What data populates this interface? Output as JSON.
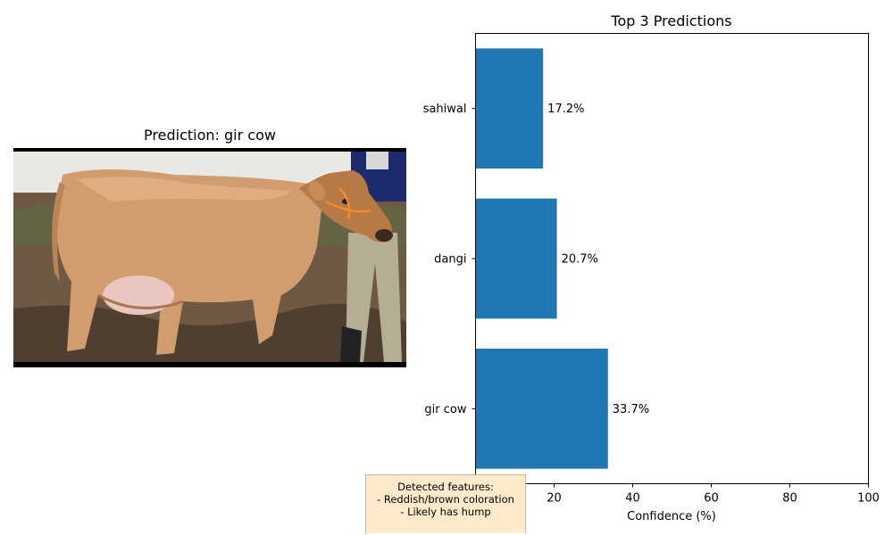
{
  "left_panel": {
    "title": "Prediction: gir cow",
    "photo_icon": "brown-cow-photo"
  },
  "features": {
    "lines": [
      "Detected features:",
      "- Reddish/brown coloration",
      "- Likely has hump"
    ]
  },
  "chart_data": {
    "type": "bar",
    "orientation": "horizontal",
    "title": "Top 3 Predictions",
    "xlabel": "Confidence (%)",
    "ylabel": "",
    "xlim": [
      0,
      100
    ],
    "x_ticks": [
      0,
      20,
      40,
      60,
      80,
      100
    ],
    "categories": [
      "gir cow",
      "dangi",
      "sahiwal"
    ],
    "values": [
      33.7,
      20.7,
      17.2
    ],
    "value_labels": [
      "33.7%",
      "20.7%",
      "17.2%"
    ],
    "bar_color": "#1f77b4",
    "grid": false,
    "legend": "none"
  }
}
